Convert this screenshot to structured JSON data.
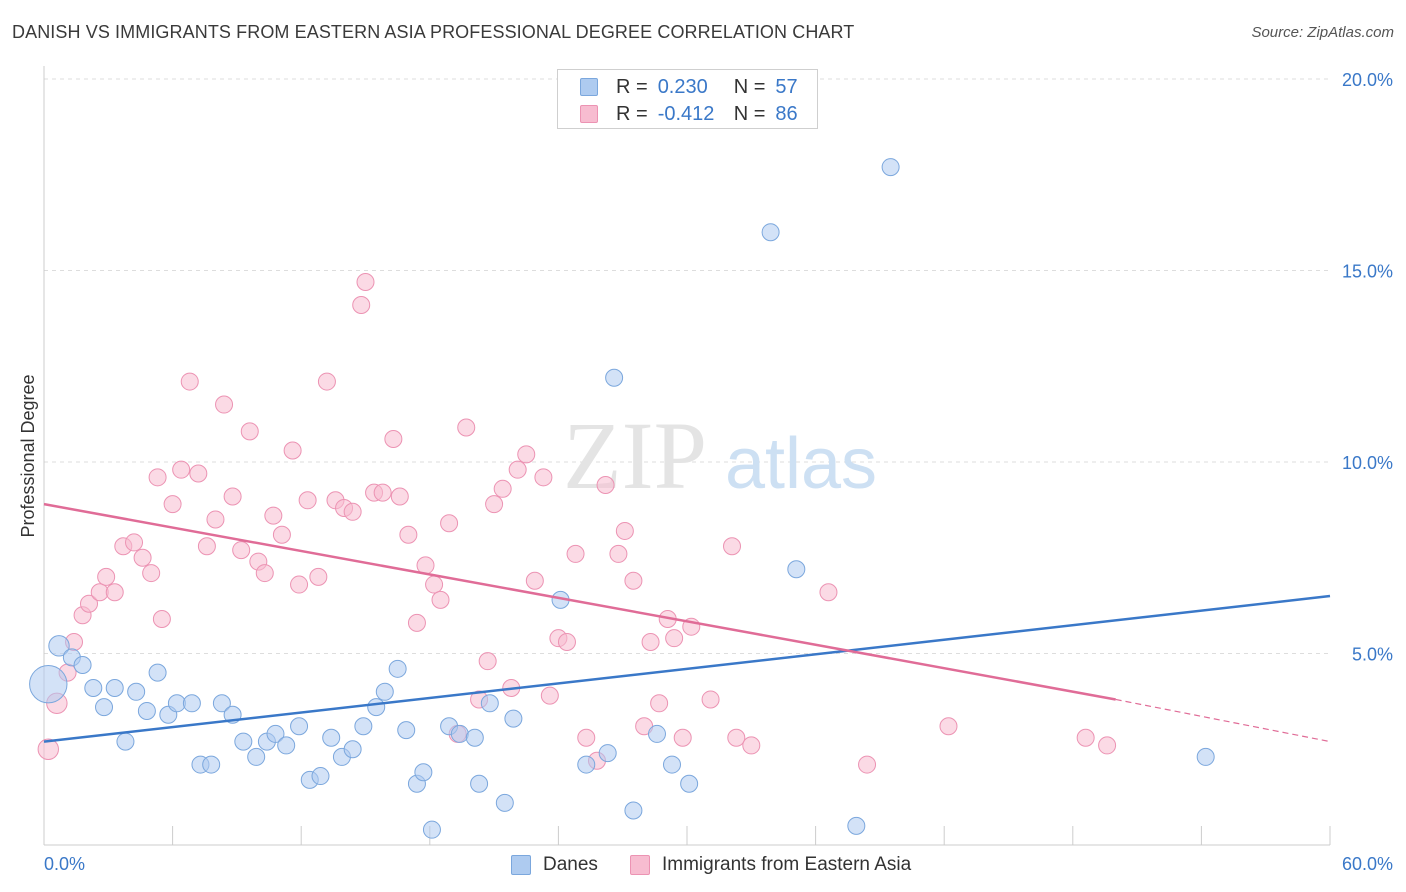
{
  "title": "DANISH VS IMMIGRANTS FROM EASTERN ASIA PROFESSIONAL DEGREE CORRELATION CHART",
  "source": "Source: ZipAtlas.com",
  "watermark": {
    "zip": "ZIP",
    "atlas": "atlas"
  },
  "colors": {
    "blue_fill": "#aecbf0",
    "blue_stroke": "#7ba7dd",
    "blue_line": "#3a78c8",
    "pink_fill": "#f7bcd0",
    "pink_stroke": "#ec93b3",
    "pink_line": "#e06c97",
    "axis_label": "#3a78c8",
    "grid": "#dddddd"
  },
  "legend_top": {
    "rows": [
      {
        "r_label": "R =",
        "r_value": "0.230",
        "n_label": "N =",
        "n_value": "57",
        "color": "blue"
      },
      {
        "r_label": "R =",
        "r_value": "-0.412",
        "n_label": "N =",
        "n_value": "86",
        "color": "pink"
      }
    ]
  },
  "legend_bottom": {
    "series": [
      "Danes",
      "Immigrants from Eastern Asia"
    ]
  },
  "chart_data": {
    "type": "scatter",
    "title": "DANISH VS IMMIGRANTS FROM EASTERN ASIA PROFESSIONAL DEGREE CORRELATION CHART",
    "xlabel": "",
    "ylabel": "Professional Degree",
    "xlim": [
      0,
      60
    ],
    "ylim": [
      0,
      20
    ],
    "x_tick_labels": [
      "0.0%",
      "60.0%"
    ],
    "y_tick_labels": [
      "5.0%",
      "10.0%",
      "15.0%",
      "20.0%"
    ],
    "y_ticks": [
      5,
      10,
      15,
      20
    ],
    "x_minor_ticks": [
      0,
      6,
      12,
      18,
      24,
      30,
      36,
      42,
      48,
      54,
      60
    ],
    "grid": "horizontal dashed",
    "legend_position": "top-center",
    "series": [
      {
        "name": "Danes",
        "color": "blue",
        "R": 0.23,
        "N": 57,
        "trend": {
          "x": [
            0,
            60
          ],
          "y": [
            2.7,
            6.5
          ]
        },
        "points": [
          [
            0.2,
            4.2,
            2.2
          ],
          [
            0.7,
            5.2,
            1.2
          ],
          [
            1.3,
            4.9,
            1
          ],
          [
            1.8,
            4.7,
            1
          ],
          [
            2.3,
            4.1,
            1
          ],
          [
            2.8,
            3.6,
            1
          ],
          [
            3.3,
            4.1,
            1
          ],
          [
            3.8,
            2.7,
            1
          ],
          [
            4.3,
            4.0,
            1
          ],
          [
            4.8,
            3.5,
            1
          ],
          [
            5.3,
            4.5,
            1
          ],
          [
            5.8,
            3.4,
            1
          ],
          [
            6.2,
            3.7,
            1
          ],
          [
            6.9,
            3.7,
            1
          ],
          [
            7.3,
            2.1,
            1
          ],
          [
            7.8,
            2.1,
            1
          ],
          [
            8.3,
            3.7,
            1
          ],
          [
            8.8,
            3.4,
            1
          ],
          [
            9.3,
            2.7,
            1
          ],
          [
            9.9,
            2.3,
            1
          ],
          [
            10.4,
            2.7,
            1
          ],
          [
            10.8,
            2.9,
            1
          ],
          [
            11.3,
            2.6,
            1
          ],
          [
            11.9,
            3.1,
            1
          ],
          [
            12.4,
            1.7,
            1
          ],
          [
            12.9,
            1.8,
            1
          ],
          [
            13.4,
            2.8,
            1
          ],
          [
            13.9,
            2.3,
            1
          ],
          [
            14.4,
            2.5,
            1
          ],
          [
            14.9,
            3.1,
            1
          ],
          [
            15.5,
            3.6,
            1
          ],
          [
            15.9,
            4.0,
            1
          ],
          [
            16.5,
            4.6,
            1
          ],
          [
            16.9,
            3.0,
            1
          ],
          [
            17.4,
            1.6,
            1
          ],
          [
            17.7,
            1.9,
            1
          ],
          [
            18.1,
            0.4,
            1
          ],
          [
            18.9,
            3.1,
            1
          ],
          [
            19.4,
            2.9,
            1
          ],
          [
            20.1,
            2.8,
            1
          ],
          [
            20.3,
            1.6,
            1
          ],
          [
            20.8,
            3.7,
            1
          ],
          [
            21.5,
            1.1,
            1
          ],
          [
            21.9,
            3.3,
            1
          ],
          [
            24.1,
            6.4,
            1
          ],
          [
            25.3,
            2.1,
            1
          ],
          [
            26.3,
            2.4,
            1
          ],
          [
            26.6,
            12.2,
            1
          ],
          [
            27.5,
            0.9,
            1
          ],
          [
            28.6,
            2.9,
            1
          ],
          [
            29.3,
            2.1,
            1
          ],
          [
            30.1,
            1.6,
            1
          ],
          [
            33.9,
            16.0,
            1
          ],
          [
            35.1,
            7.2,
            1
          ],
          [
            37.9,
            0.5,
            1
          ],
          [
            39.5,
            17.7,
            1
          ],
          [
            54.2,
            2.3,
            1
          ]
        ]
      },
      {
        "name": "Immigrants from Eastern Asia",
        "color": "pink",
        "R": -0.412,
        "N": 86,
        "trend": {
          "x": [
            0,
            50
          ],
          "y": [
            8.9,
            3.8
          ]
        },
        "trend_dashed": {
          "x": [
            50,
            60
          ],
          "y": [
            3.8,
            2.7
          ]
        },
        "points": [
          [
            0.2,
            2.5,
            1.2
          ],
          [
            0.6,
            3.7,
            1.2
          ],
          [
            1.1,
            4.5,
            1
          ],
          [
            1.4,
            5.3,
            1
          ],
          [
            1.8,
            6.0,
            1
          ],
          [
            2.1,
            6.3,
            1
          ],
          [
            2.6,
            6.6,
            1
          ],
          [
            2.9,
            7.0,
            1
          ],
          [
            3.3,
            6.6,
            1
          ],
          [
            3.7,
            7.8,
            1
          ],
          [
            4.2,
            7.9,
            1
          ],
          [
            4.6,
            7.5,
            1
          ],
          [
            5.0,
            7.1,
            1
          ],
          [
            5.3,
            9.6,
            1
          ],
          [
            5.5,
            5.9,
            1
          ],
          [
            6.0,
            8.9,
            1
          ],
          [
            6.4,
            9.8,
            1
          ],
          [
            6.8,
            12.1,
            1
          ],
          [
            7.2,
            9.7,
            1
          ],
          [
            7.6,
            7.8,
            1
          ],
          [
            8.0,
            8.5,
            1
          ],
          [
            8.4,
            11.5,
            1
          ],
          [
            8.8,
            9.1,
            1
          ],
          [
            9.2,
            7.7,
            1
          ],
          [
            9.6,
            10.8,
            1
          ],
          [
            10.0,
            7.4,
            1
          ],
          [
            10.3,
            7.1,
            1
          ],
          [
            10.7,
            8.6,
            1
          ],
          [
            11.1,
            8.1,
            1
          ],
          [
            11.6,
            10.3,
            1
          ],
          [
            11.9,
            6.8,
            1
          ],
          [
            12.3,
            9.0,
            1
          ],
          [
            12.8,
            7.0,
            1
          ],
          [
            13.2,
            12.1,
            1
          ],
          [
            13.6,
            9.0,
            1
          ],
          [
            14.0,
            8.8,
            1
          ],
          [
            14.4,
            8.7,
            1
          ],
          [
            14.8,
            14.1,
            1
          ],
          [
            15.0,
            14.7,
            1
          ],
          [
            15.4,
            9.2,
            1
          ],
          [
            15.8,
            9.2,
            1
          ],
          [
            16.3,
            10.6,
            1
          ],
          [
            16.6,
            9.1,
            1
          ],
          [
            17.0,
            8.1,
            1
          ],
          [
            17.4,
            5.8,
            1
          ],
          [
            17.8,
            7.3,
            1
          ],
          [
            18.2,
            6.8,
            1
          ],
          [
            18.5,
            6.4,
            1
          ],
          [
            18.9,
            8.4,
            1
          ],
          [
            19.3,
            2.9,
            1
          ],
          [
            19.7,
            10.9,
            1
          ],
          [
            20.3,
            3.8,
            1
          ],
          [
            20.7,
            4.8,
            1
          ],
          [
            21.0,
            8.9,
            1
          ],
          [
            21.4,
            9.3,
            1
          ],
          [
            21.8,
            4.1,
            1
          ],
          [
            22.1,
            9.8,
            1
          ],
          [
            22.5,
            10.2,
            1
          ],
          [
            22.9,
            6.9,
            1
          ],
          [
            23.3,
            9.6,
            1
          ],
          [
            23.6,
            3.9,
            1
          ],
          [
            24.0,
            5.4,
            1
          ],
          [
            24.4,
            5.3,
            1
          ],
          [
            24.8,
            7.6,
            1
          ],
          [
            25.3,
            2.8,
            1
          ],
          [
            25.8,
            2.2,
            1
          ],
          [
            26.2,
            9.4,
            1
          ],
          [
            26.8,
            7.6,
            1
          ],
          [
            27.1,
            8.2,
            1
          ],
          [
            27.5,
            6.9,
            1
          ],
          [
            28.0,
            3.1,
            1
          ],
          [
            28.3,
            5.3,
            1
          ],
          [
            28.7,
            3.7,
            1
          ],
          [
            29.1,
            5.9,
            1
          ],
          [
            29.4,
            5.4,
            1
          ],
          [
            29.8,
            2.8,
            1
          ],
          [
            30.2,
            5.7,
            1
          ],
          [
            31.1,
            3.8,
            1
          ],
          [
            32.1,
            7.8,
            1
          ],
          [
            32.3,
            2.8,
            1
          ],
          [
            33.0,
            2.6,
            1
          ],
          [
            36.6,
            6.6,
            1
          ],
          [
            38.4,
            2.1,
            1
          ],
          [
            42.2,
            3.1,
            1
          ],
          [
            48.6,
            2.8,
            1
          ],
          [
            49.6,
            2.6,
            1
          ]
        ]
      }
    ]
  }
}
